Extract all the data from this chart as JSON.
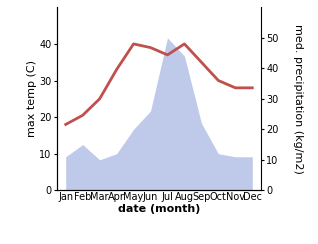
{
  "months": [
    "Jan",
    "Feb",
    "Mar",
    "Apr",
    "May",
    "Jun",
    "Jul",
    "Aug",
    "Sep",
    "Oct",
    "Nov",
    "Dec"
  ],
  "temperature": [
    18,
    20.5,
    25,
    33,
    40,
    39,
    37,
    40,
    35,
    30,
    28,
    28
  ],
  "precipitation": [
    11,
    15,
    10,
    12,
    20,
    26,
    50,
    44,
    22,
    12,
    11,
    11
  ],
  "temp_color": "#c0504d",
  "precip_color": "#b8c4e8",
  "ylabel_left": "max temp (C)",
  "ylabel_right": "med. precipitation (kg/m2)",
  "xlabel": "date (month)",
  "ylim_left": [
    0,
    50
  ],
  "ylim_right": [
    0,
    60
  ],
  "yticks_left": [
    0,
    10,
    20,
    30,
    40
  ],
  "yticks_right": [
    0,
    10,
    20,
    30,
    40,
    50
  ],
  "background_color": "#ffffff",
  "temp_linewidth": 2.0,
  "xlabel_fontsize": 8,
  "ylabel_fontsize": 8,
  "tick_fontsize": 7
}
